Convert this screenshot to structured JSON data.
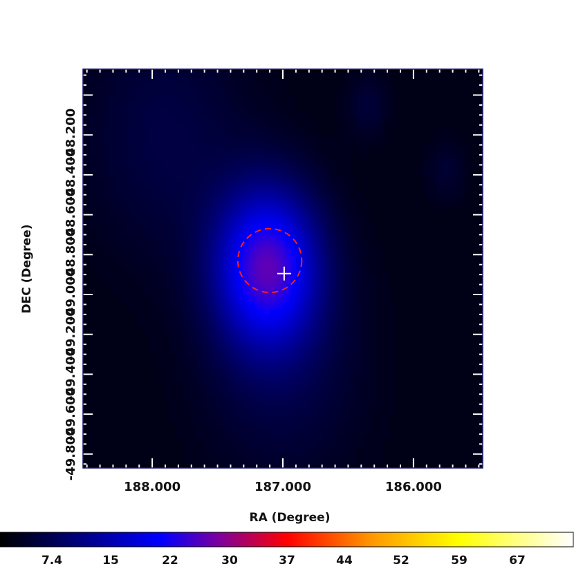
{
  "chart_data": {
    "type": "heatmap",
    "xlabel": "RA (Degree)",
    "ylabel": "DEC (Degree)",
    "x_axis_reversed": true,
    "xlim": [
      188.53,
      185.47
    ],
    "ylim": [
      -49.87,
      -47.87
    ],
    "x_ticks": [
      {
        "value": 188.0,
        "label": "188.000"
      },
      {
        "value": 187.0,
        "label": "187.000"
      },
      {
        "value": 186.0,
        "label": "186.000"
      }
    ],
    "y_ticks": [
      {
        "value": -48.2,
        "label": "-48.200"
      },
      {
        "value": -48.4,
        "label": "-48.400"
      },
      {
        "value": -48.6,
        "label": "-48.600"
      },
      {
        "value": -48.8,
        "label": "-48.800"
      },
      {
        "value": -49.0,
        "label": "-49.000"
      },
      {
        "value": -49.2,
        "label": "-49.200"
      },
      {
        "value": -49.4,
        "label": "-49.400"
      },
      {
        "value": -49.6,
        "label": "-49.600"
      },
      {
        "value": -49.8,
        "label": "-49.800"
      }
    ],
    "colormap": "black-blue-purple-red-orange-yellow-white",
    "colorbar": {
      "ticks": [
        "7.4",
        "15",
        "22",
        "30",
        "37",
        "44",
        "52",
        "59",
        "67"
      ],
      "stops": [
        {
          "offset": 0.0,
          "color": "#000000"
        },
        {
          "offset": 0.28,
          "color": "#0000ff"
        },
        {
          "offset": 0.38,
          "color": "#7a00a0"
        },
        {
          "offset": 0.5,
          "color": "#ff0000"
        },
        {
          "offset": 0.65,
          "color": "#ff9900"
        },
        {
          "offset": 0.8,
          "color": "#ffff00"
        },
        {
          "offset": 1.0,
          "color": "#ffffff"
        }
      ]
    },
    "intensity_sources": [
      {
        "ra": 187.12,
        "dec": -48.86,
        "sigma_deg": 0.28,
        "value": 23
      },
      {
        "ra": 187.0,
        "dec": -49.35,
        "sigma_deg": 0.45,
        "value": 4
      },
      {
        "ra": 187.9,
        "dec": -48.2,
        "sigma_deg": 0.45,
        "value": 4
      },
      {
        "ra": 186.35,
        "dec": -48.05,
        "sigma_deg": 0.12,
        "value": 3
      },
      {
        "ra": 185.75,
        "dec": -48.38,
        "sigma_deg": 0.12,
        "value": 2.5
      }
    ],
    "background_value": 1.5,
    "annotations": [
      {
        "type": "circle",
        "ra": 187.1,
        "dec": -48.83,
        "radius_deg": 0.16,
        "color": "#ff2020",
        "style": "dashed"
      },
      {
        "type": "cross",
        "ra": 186.99,
        "dec": -48.895,
        "color": "#ffffff"
      }
    ],
    "grid": false
  }
}
